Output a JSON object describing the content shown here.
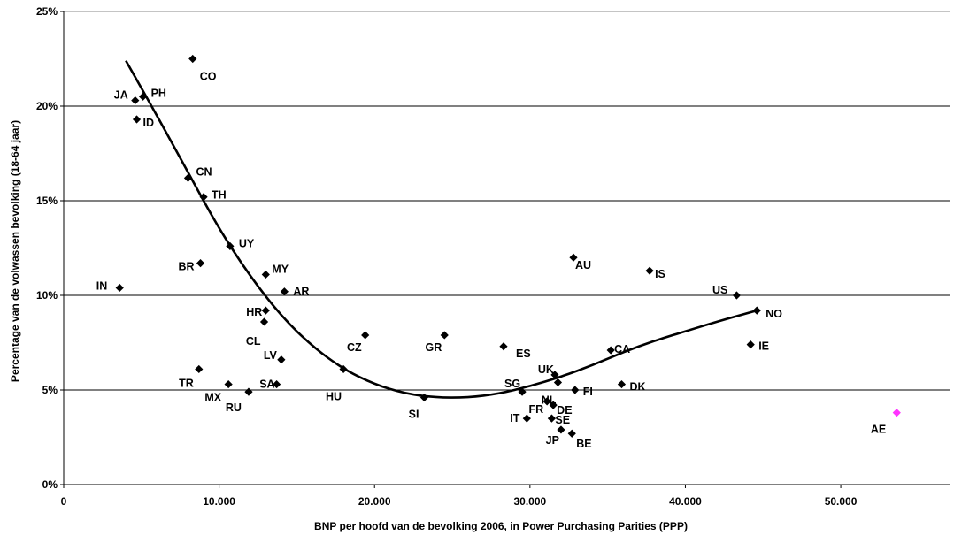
{
  "chart_data": {
    "type": "scatter",
    "title": "",
    "xlabel": "BNP per hoofd van de bevolking 2006, in Power Purchasing Parities (PPP)",
    "ylabel": "Percentage van de volwassen bevolking (18-64 jaar)",
    "xlim": [
      0,
      57000
    ],
    "ylim": [
      0,
      25
    ],
    "x_ticks": [
      0,
      10000,
      20000,
      30000,
      40000,
      50000
    ],
    "x_tick_labels": [
      "0",
      "10.000",
      "20.000",
      "30.000",
      "40.000",
      "50.000"
    ],
    "y_ticks": [
      0,
      5,
      10,
      15,
      20,
      25
    ],
    "y_tick_labels": [
      "0%",
      "5%",
      "10%",
      "15%",
      "20%",
      "25%"
    ],
    "grid": "horizontal",
    "colors": {
      "default": "#000000",
      "highlight": "#ff33ff",
      "grid": "#000000"
    },
    "points": [
      {
        "label": "CO",
        "x": 8300,
        "y": 22.5
      },
      {
        "label": "JA",
        "x": 4600,
        "y": 20.3
      },
      {
        "label": "PH",
        "x": 5100,
        "y": 20.5
      },
      {
        "label": "ID",
        "x": 4700,
        "y": 19.3
      },
      {
        "label": "CN",
        "x": 8000,
        "y": 16.2
      },
      {
        "label": "TH",
        "x": 9000,
        "y": 15.2
      },
      {
        "label": "UY",
        "x": 10700,
        "y": 12.6
      },
      {
        "label": "BR",
        "x": 8800,
        "y": 11.7
      },
      {
        "label": "MY",
        "x": 13000,
        "y": 11.1
      },
      {
        "label": "IN",
        "x": 3600,
        "y": 10.4
      },
      {
        "label": "AR",
        "x": 14200,
        "y": 10.2
      },
      {
        "label": "HR",
        "x": 13000,
        "y": 9.2
      },
      {
        "label": "CL",
        "x": 12900,
        "y": 8.6
      },
      {
        "label": "LV",
        "x": 14000,
        "y": 6.6
      },
      {
        "label": "CZ",
        "x": 19400,
        "y": 7.9
      },
      {
        "label": "GR",
        "x": 24500,
        "y": 7.9
      },
      {
        "label": "ES",
        "x": 28300,
        "y": 7.3
      },
      {
        "label": "TR",
        "x": 8700,
        "y": 6.1
      },
      {
        "label": "HU",
        "x": 18000,
        "y": 6.1
      },
      {
        "label": "SA",
        "x": 13700,
        "y": 5.3
      },
      {
        "label": "MX",
        "x": 10600,
        "y": 5.3
      },
      {
        "label": "RU",
        "x": 11900,
        "y": 4.9
      },
      {
        "label": "SI",
        "x": 23200,
        "y": 4.6
      },
      {
        "label": "AU",
        "x": 32800,
        "y": 12.0
      },
      {
        "label": "IS",
        "x": 37700,
        "y": 11.3
      },
      {
        "label": "US",
        "x": 43300,
        "y": 10.0
      },
      {
        "label": "NO",
        "x": 44600,
        "y": 9.2
      },
      {
        "label": "IE",
        "x": 44200,
        "y": 7.4
      },
      {
        "label": "CA",
        "x": 35200,
        "y": 7.1
      },
      {
        "label": "DK",
        "x": 35900,
        "y": 5.3
      },
      {
        "label": "UK",
        "x": 31600,
        "y": 5.8
      },
      {
        "label": "SG",
        "x": 29500,
        "y": 4.9
      },
      {
        "label": "NL",
        "x": 31800,
        "y": 5.4
      },
      {
        "label": "FI",
        "x": 32900,
        "y": 5.0
      },
      {
        "label": "FR",
        "x": 31100,
        "y": 4.4
      },
      {
        "label": "DE",
        "x": 31500,
        "y": 4.2
      },
      {
        "label": "IT",
        "x": 29800,
        "y": 3.5
      },
      {
        "label": "SE",
        "x": 31400,
        "y": 3.5
      },
      {
        "label": "JP",
        "x": 32000,
        "y": 2.9
      },
      {
        "label": "BE",
        "x": 32700,
        "y": 2.7
      },
      {
        "label": "AE",
        "x": 53600,
        "y": 3.8,
        "highlight": true
      }
    ],
    "trendline": {
      "x": [
        4000,
        6000,
        8000,
        10000,
        12000,
        14000,
        16000,
        18000,
        20000,
        22000,
        24000,
        26000,
        28000,
        30000,
        32000,
        34000,
        36000,
        38000,
        40000,
        42000,
        44600
      ],
      "y": [
        22.4,
        19.5,
        16.5,
        13.5,
        11.0,
        8.9,
        7.3,
        6.1,
        5.3,
        4.8,
        4.6,
        4.6,
        4.8,
        5.2,
        5.7,
        6.3,
        7.0,
        7.6,
        8.1,
        8.6,
        9.2
      ]
    }
  }
}
